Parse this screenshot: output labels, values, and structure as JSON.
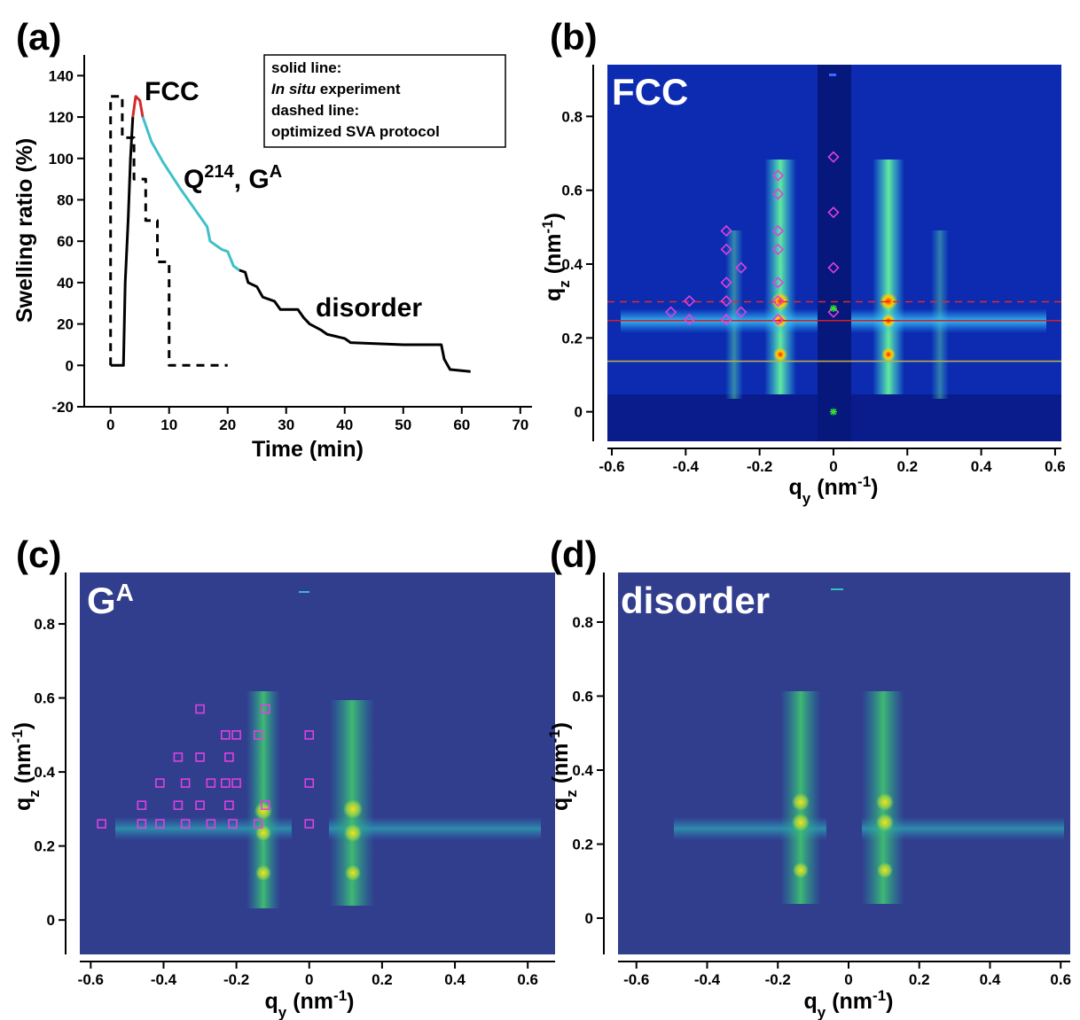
{
  "chart_data": [
    {
      "type": "line",
      "label": "(a)",
      "xlabel": "Time (min)",
      "ylabel": "Swelling ratio (%)",
      "xlim": [
        -4.5,
        72
      ],
      "ylim": [
        -20,
        150
      ],
      "xticks": [
        0,
        10,
        20,
        30,
        40,
        50,
        60,
        70
      ],
      "yticks": [
        -20,
        0,
        20,
        40,
        60,
        80,
        100,
        120,
        140
      ],
      "series": [
        {
          "color": "#000000",
          "style": "solid",
          "x": [
            0,
            2.2,
            2.5,
            3,
            3.4,
            3.8
          ],
          "values": [
            0,
            0,
            40,
            70,
            100,
            120
          ]
        },
        {
          "color": "#d42a2a",
          "style": "solid",
          "x": [
            3.8,
            4.3,
            5,
            5.5
          ],
          "values": [
            120,
            130,
            128,
            120
          ]
        },
        {
          "color": "#3fc0c8",
          "style": "solid",
          "x": [
            5.5,
            7,
            9,
            12,
            15,
            16.5,
            17,
            19,
            20,
            21,
            22
          ],
          "values": [
            120,
            108,
            98,
            85,
            73,
            67,
            60,
            56,
            55,
            48,
            46
          ]
        },
        {
          "color": "#000000",
          "style": "solid",
          "x": [
            22,
            23,
            23.5,
            25,
            26,
            28,
            29,
            32,
            33,
            34,
            36,
            37,
            40,
            41,
            50,
            56.5,
            57,
            58,
            61.5
          ],
          "values": [
            46,
            45,
            40,
            38,
            33,
            31,
            27,
            27,
            23,
            20,
            17,
            15,
            13,
            11,
            10,
            10,
            3,
            -2,
            -3
          ]
        },
        {
          "color": "#000000",
          "style": "dashed",
          "x": [
            0,
            0,
            2,
            2,
            4,
            4,
            6,
            6,
            8,
            8,
            10,
            10,
            20
          ],
          "values": [
            0,
            130,
            130,
            110,
            110,
            90,
            90,
            70,
            70,
            50,
            50,
            0,
            0
          ]
        }
      ],
      "annotations": [
        "FCC",
        [
          "Q",
          "214",
          ", G",
          "A"
        ],
        "disorder"
      ],
      "legend_text": [
        [
          "solid line:"
        ],
        [
          "In situ",
          " experiment"
        ],
        [
          "dashed line:"
        ],
        [
          "optimized SVA protocol"
        ]
      ]
    },
    {
      "type": "scatter",
      "label": "(b)",
      "inset_label": "FCC",
      "xlabel": [
        "q",
        "y",
        " (nm",
        "-1",
        ")"
      ],
      "ylabel": [
        "q",
        "z",
        " (nm",
        "-1",
        ")"
      ],
      "xlim": [
        -0.612,
        0.617
      ],
      "ylim": [
        -0.08,
        0.94
      ],
      "xticks": [
        -0.6,
        -0.4,
        -0.2,
        0,
        0.2,
        0.4,
        0.6
      ],
      "yticks": [
        0,
        0.2,
        0.4,
        0.6,
        0.8
      ],
      "hlines": [
        {
          "value": 0.298,
          "color": "#e02a2a",
          "style": "dashed"
        },
        {
          "value": 0.247,
          "color": "#d42020",
          "style": "solid"
        },
        {
          "value": 0.137,
          "color": "#c8b048",
          "style": "solid"
        }
      ],
      "series": [
        {
          "marker": "diamond",
          "color": "#e040e0",
          "x": [
            -0.15,
            -0.15,
            -0.15,
            -0.15,
            -0.15,
            -0.15,
            -0.15,
            -0.29,
            -0.29,
            -0.29,
            -0.29,
            -0.29,
            -0.25,
            -0.25,
            -0.39,
            -0.39,
            -0.44,
            0,
            0,
            0,
            0
          ],
          "values": [
            0.64,
            0.59,
            0.49,
            0.44,
            0.35,
            0.3,
            0.25,
            0.49,
            0.44,
            0.35,
            0.3,
            0.25,
            0.39,
            0.27,
            0.3,
            0.25,
            0.27,
            0.69,
            0.54,
            0.39,
            0.27
          ]
        },
        {
          "marker": "star",
          "color": "#30e030",
          "x": [
            0,
            0
          ],
          "values": [
            0,
            0.28
          ]
        }
      ]
    },
    {
      "type": "scatter",
      "label": "(c)",
      "inset_label": [
        "G",
        "A"
      ],
      "xlabel": [
        "q",
        "y",
        " (nm",
        "-1",
        ")"
      ],
      "ylabel": [
        "q",
        "z",
        " (nm",
        "-1",
        ")"
      ],
      "xlim": [
        -0.63,
        0.675
      ],
      "ylim": [
        -0.093,
        0.939
      ],
      "xticks": [
        -0.6,
        -0.4,
        -0.2,
        0,
        0.2,
        0.4,
        0.6
      ],
      "yticks": [
        0,
        0.2,
        0.4,
        0.6,
        0.8
      ],
      "series": [
        {
          "marker": "square",
          "color": "#e040e0",
          "x": [
            -0.57,
            -0.46,
            -0.41,
            -0.34,
            -0.27,
            -0.21,
            -0.14,
            0,
            -0.46,
            -0.36,
            -0.3,
            -0.22,
            -0.12,
            -0.41,
            -0.34,
            -0.27,
            -0.23,
            -0.2,
            0,
            -0.36,
            -0.3,
            -0.22,
            -0.23,
            -0.2,
            -0.14,
            0,
            -0.3,
            -0.12
          ],
          "values": [
            0.26,
            0.26,
            0.26,
            0.26,
            0.26,
            0.26,
            0.26,
            0.26,
            0.31,
            0.31,
            0.31,
            0.31,
            0.31,
            0.37,
            0.37,
            0.37,
            0.37,
            0.37,
            0.37,
            0.44,
            0.44,
            0.44,
            0.5,
            0.5,
            0.5,
            0.5,
            0.57,
            0.57
          ]
        }
      ]
    },
    {
      "type": "scatter",
      "label": "(d)",
      "inset_label": "disorder",
      "xlabel": [
        "q",
        "y",
        " (nm",
        "-1",
        ")"
      ],
      "ylabel": [
        "q",
        "z",
        " (nm",
        "-1",
        ")"
      ],
      "xlim": [
        -0.652,
        0.627
      ],
      "ylim": [
        -0.098,
        0.934
      ],
      "xticks": [
        -0.6,
        -0.4,
        -0.2,
        0,
        0.2,
        0.4,
        0.6
      ],
      "yticks": [
        0,
        0.2,
        0.4,
        0.6,
        0.8
      ],
      "series": []
    }
  ]
}
